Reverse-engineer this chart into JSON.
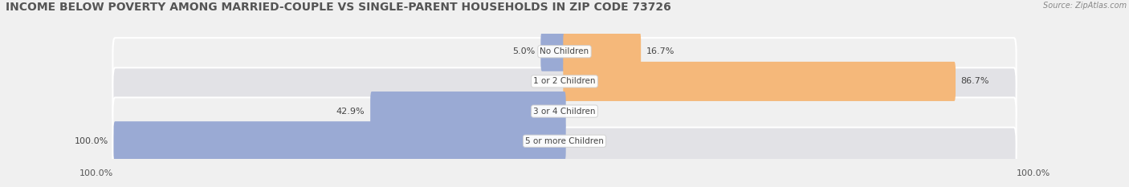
{
  "title": "INCOME BELOW POVERTY AMONG MARRIED-COUPLE VS SINGLE-PARENT HOUSEHOLDS IN ZIP CODE 73726",
  "source": "Source: ZipAtlas.com",
  "categories": [
    "No Children",
    "1 or 2 Children",
    "3 or 4 Children",
    "5 or more Children"
  ],
  "married_values": [
    5.0,
    0.0,
    42.9,
    100.0
  ],
  "single_values": [
    16.7,
    86.7,
    0.0,
    0.0
  ],
  "married_color": "#9aaad4",
  "single_color": "#f5b87a",
  "row_light": "#f0f0f0",
  "row_dark": "#e2e2e6",
  "title_fontsize": 10,
  "label_fontsize": 8,
  "cat_fontsize": 7.5,
  "source_fontsize": 7,
  "legend_fontsize": 8,
  "axis_max": 100.0,
  "figsize": [
    14.06,
    2.33
  ],
  "dpi": 100,
  "background": "#f0f0f0"
}
